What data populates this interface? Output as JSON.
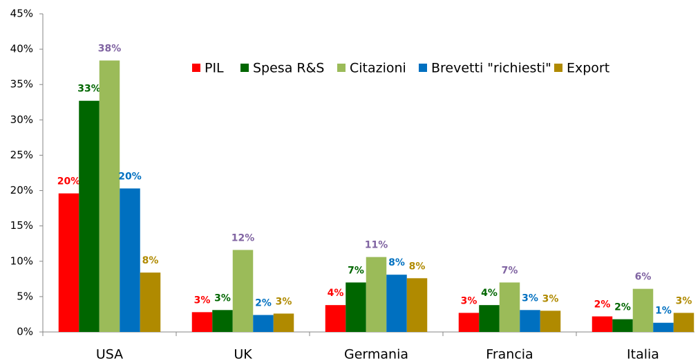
{
  "chart_data": {
    "type": "bar",
    "categories": [
      "USA",
      "UK",
      "Germania",
      "Francia",
      "Italia"
    ],
    "series": [
      {
        "name": "PIL",
        "color": "#ff0000",
        "label_color": "#ff0000",
        "values": [
          19.6,
          2.8,
          3.8,
          2.7,
          2.2
        ],
        "value_labels": [
          "20%",
          "3%",
          "4%",
          "3%",
          "2%"
        ]
      },
      {
        "name": "Spesa R&S",
        "color": "#006600",
        "label_color": "#006600",
        "values": [
          32.7,
          3.1,
          7.0,
          3.8,
          1.8
        ],
        "value_labels": [
          "33%",
          "3%",
          "7%",
          "4%",
          "2%"
        ]
      },
      {
        "name": "Citazioni",
        "color": "#9bbb59",
        "label_color": "#8064a2",
        "values": [
          38.4,
          11.6,
          10.6,
          7.0,
          6.1
        ],
        "value_labels": [
          "38%",
          "12%",
          "11%",
          "7%",
          "6%"
        ]
      },
      {
        "name": "Brevetti \"richiesti\"",
        "color": "#0070c0",
        "label_color": "#0070c0",
        "values": [
          20.3,
          2.4,
          8.1,
          3.1,
          1.3
        ],
        "value_labels": [
          "20%",
          "2%",
          "8%",
          "3%",
          "1%"
        ]
      },
      {
        "name": "Export",
        "color": "#b08a00",
        "label_color": "#b08a00",
        "values": [
          8.4,
          2.6,
          7.6,
          3.0,
          2.7
        ],
        "value_labels": [
          "8%",
          "3%",
          "8%",
          "3%",
          "3%"
        ]
      }
    ],
    "ylim": [
      0,
      45
    ],
    "yticks": [
      {
        "value": 0,
        "label": "0%"
      },
      {
        "value": 5,
        "label": "5%"
      },
      {
        "value": 10,
        "label": "10%"
      },
      {
        "value": 15,
        "label": "15%"
      },
      {
        "value": 20,
        "label": "20%"
      },
      {
        "value": 25,
        "label": "25%"
      },
      {
        "value": 30,
        "label": "30%"
      },
      {
        "value": 35,
        "label": "35%"
      },
      {
        "value": 40,
        "label": "40%"
      },
      {
        "value": 45,
        "label": "45%"
      }
    ],
    "grid": false,
    "legend": "top"
  }
}
